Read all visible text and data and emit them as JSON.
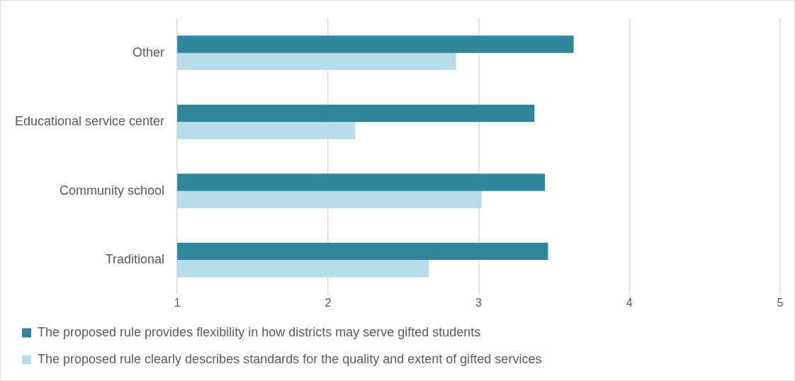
{
  "chart_data": {
    "type": "bar",
    "orientation": "horizontal",
    "categories": [
      "Other",
      "Educational service center",
      "Community school",
      "Traditional"
    ],
    "series": [
      {
        "name": "The proposed rule provides flexibility in how districts may serve gifted students",
        "color": "#31859c",
        "values": [
          3.63,
          3.37,
          3.44,
          3.46
        ]
      },
      {
        "name": "The proposed rule clearly describes standards for the quality and extent of gifted services",
        "color": "#b7dee8",
        "values": [
          2.85,
          2.18,
          3.02,
          2.67
        ]
      }
    ],
    "xlim": [
      1,
      5
    ],
    "xticks": [
      1,
      2,
      3,
      4,
      5
    ],
    "grid": "x",
    "legend": "bottom"
  }
}
